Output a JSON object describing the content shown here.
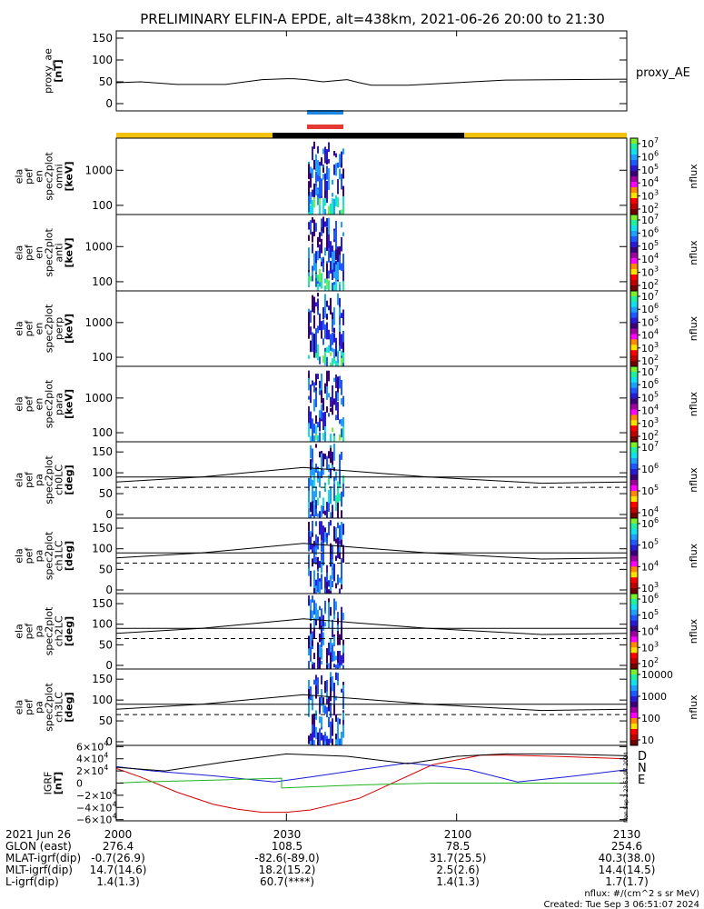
{
  "title": "PRELIMINARY ELFIN-A EPDE, alt=438km, 2021-06-26 20:00 to 21:30",
  "orbit_bars": {
    "top_colors": [
      "#1e88e5",
      "#e53935"
    ],
    "segments": [
      "#f4c20d",
      "#000000",
      "#f4c20d"
    ]
  },
  "chart_data": [
    {
      "type": "line",
      "panel": "proxy_ae",
      "ylabel_lines": [
        "proxy_ae",
        "[nT]"
      ],
      "legend": "proxy_AE",
      "yticks": [
        "150",
        "100",
        "50",
        "0"
      ],
      "ylim": [
        0,
        160
      ],
      "x_minutes": [
        0,
        10,
        25,
        45,
        60,
        70,
        73,
        78,
        82,
        85,
        95,
        100,
        105,
        120,
        160,
        210
      ],
      "y": [
        48,
        50,
        44,
        44,
        55,
        57,
        57,
        55,
        52,
        50,
        55,
        48,
        42,
        42,
        54,
        56
      ]
    },
    {
      "type": "heatmap",
      "panel": "spec_omni",
      "ylabel_lines": [
        "ela",
        "pef",
        "en",
        "spec2plot",
        "omni",
        "[keV]"
      ],
      "yticks": [
        "1000",
        "100"
      ],
      "cbar": {
        "ticks": [
          "10^7",
          "10^6",
          "10^5",
          "10^4",
          "10^3",
          "10^2"
        ],
        "label": "nflux"
      }
    },
    {
      "type": "heatmap",
      "panel": "spec_anti",
      "ylabel_lines": [
        "ela",
        "pef",
        "en",
        "spec2plot",
        "anti",
        "[keV]"
      ],
      "yticks": [
        "1000",
        "100"
      ],
      "cbar": {
        "ticks": [
          "10^7",
          "10^6",
          "10^5",
          "10^4",
          "10^3",
          "10^2"
        ],
        "label": "nflux"
      }
    },
    {
      "type": "heatmap",
      "panel": "spec_perp",
      "ylabel_lines": [
        "ela",
        "pef",
        "en",
        "spec2plot",
        "perp",
        "[keV]"
      ],
      "yticks": [
        "1000",
        "100"
      ],
      "cbar": {
        "ticks": [
          "10^7",
          "10^6",
          "10^5",
          "10^4",
          "10^3",
          "10^2"
        ],
        "label": "nflux"
      }
    },
    {
      "type": "heatmap",
      "panel": "spec_para",
      "ylabel_lines": [
        "ela",
        "pef",
        "en",
        "spec2plot",
        "para",
        "[keV]"
      ],
      "yticks": [
        "1000",
        "100"
      ],
      "cbar": {
        "ticks": [
          "10^7",
          "10^6",
          "10^5",
          "10^4",
          "10^3",
          "10^2"
        ],
        "label": "nflux"
      }
    },
    {
      "type": "heatmap",
      "panel": "pa_ch0",
      "ylabel_lines": [
        "ela",
        "pef",
        "pa",
        "spec2plot",
        "ch0LC",
        "[deg]"
      ],
      "yticks": [
        "150",
        "100",
        "50",
        "0"
      ],
      "cbar": {
        "ticks": [
          "10^7",
          "10^6",
          "10^5",
          "10^4"
        ],
        "label": "nflux"
      }
    },
    {
      "type": "heatmap",
      "panel": "pa_ch1",
      "ylabel_lines": [
        "ela",
        "pef",
        "pa",
        "spec2plot",
        "ch1LC",
        "[deg]"
      ],
      "yticks": [
        "150",
        "100",
        "50",
        "0"
      ],
      "cbar": {
        "ticks": [
          "10^6",
          "10^5",
          "10^4",
          "10^3"
        ],
        "label": "nflux"
      }
    },
    {
      "type": "heatmap",
      "panel": "pa_ch2",
      "ylabel_lines": [
        "ela",
        "pef",
        "pa",
        "spec2plot",
        "ch2LC",
        "[deg]"
      ],
      "yticks": [
        "150",
        "100",
        "50",
        "0"
      ],
      "cbar": {
        "ticks": [
          "10^6",
          "10^5",
          "10^4",
          "10^3",
          "10^2"
        ],
        "label": "nflux"
      }
    },
    {
      "type": "heatmap",
      "panel": "pa_ch3",
      "ylabel_lines": [
        "ela",
        "pef",
        "pa",
        "spec2plot",
        "ch3LC",
        "[deg]"
      ],
      "yticks": [
        "150",
        "100",
        "50",
        "0"
      ],
      "cbar": {
        "ticks": [
          "10000",
          "1000",
          "100",
          "10"
        ],
        "label": "nflux"
      }
    },
    {
      "type": "line",
      "panel": "igrf",
      "ylabel_lines": [
        "IGRF",
        "[nT]"
      ],
      "yticks": [
        "6×10^4",
        "4×10^4",
        "2×10^4",
        "0",
        "−2×10^4",
        "−4×10^4",
        "−6×10^4"
      ],
      "ylim": [
        -60000,
        60000
      ],
      "series": [
        {
          "name": "D",
          "color": "#d40000",
          "x_minutes": [
            0,
            10,
            25,
            40,
            50,
            60,
            70,
            80,
            100,
            130,
            150,
            160,
            180,
            210
          ],
          "values": [
            24000,
            10000,
            -15000,
            -35000,
            -43000,
            -48000,
            -48000,
            -44000,
            -25000,
            30000,
            46000,
            46000,
            44000,
            40000
          ]
        },
        {
          "name": "N",
          "color": "#1a1ad4",
          "x_minutes": [
            0,
            15,
            40,
            65,
            80,
            100,
            120,
            145,
            165,
            185,
            210
          ],
          "values": [
            27000,
            20000,
            12000,
            2000,
            10000,
            22000,
            33000,
            22000,
            2000,
            10000,
            22000
          ]
        },
        {
          "name": "E",
          "color": "#1eb41e",
          "x_minutes": [
            0,
            10,
            40,
            68,
            68,
            100,
            130,
            140,
            210
          ],
          "values": [
            0,
            2000,
            5000,
            8000,
            -8000,
            -3000,
            0,
            0,
            0
          ]
        },
        {
          "name": "",
          "color": "#000000",
          "x_minutes": [
            0,
            20,
            45,
            70,
            95,
            120,
            140,
            160,
            180,
            210
          ],
          "values": [
            26000,
            20000,
            35000,
            48000,
            44000,
            32000,
            44000,
            48000,
            48000,
            45000
          ]
        }
      ]
    }
  ],
  "x_axis": {
    "ticks": [
      "2000",
      "2030",
      "2100",
      "2130"
    ],
    "range_minutes": [
      0,
      90
    ]
  },
  "side_text": "Mon Sep 2 23:51:07 2024",
  "footer": {
    "rows": [
      {
        "label": "2021 Jun 26",
        "vals": [
          "2000",
          "2030",
          "2100",
          "2130"
        ]
      },
      {
        "label": "GLON (east)",
        "vals": [
          "276.4",
          "108.5",
          "78.5",
          "254.6"
        ]
      },
      {
        "label": "MLAT-igrf(dip)",
        "vals": [
          "-0.7(26.9)",
          "-82.6(-89.0)",
          "31.7(25.5)",
          "40.3(38.0)"
        ]
      },
      {
        "label": "MLT-igrf(dip)",
        "vals": [
          "14.7(14.6)",
          "18.2(15.2)",
          "2.5(2.6)",
          "14.4(14.5)"
        ]
      },
      {
        "label": "L-igrf(dip)",
        "vals": [
          "1.4(1.3)",
          "60.7(****)",
          "1.4(1.3)",
          "1.7(1.7)"
        ]
      }
    ],
    "note1": "nflux: #/(cm^2 s sr MeV)",
    "note2": "Created: Tue Sep  3 06:51:07 2024"
  }
}
